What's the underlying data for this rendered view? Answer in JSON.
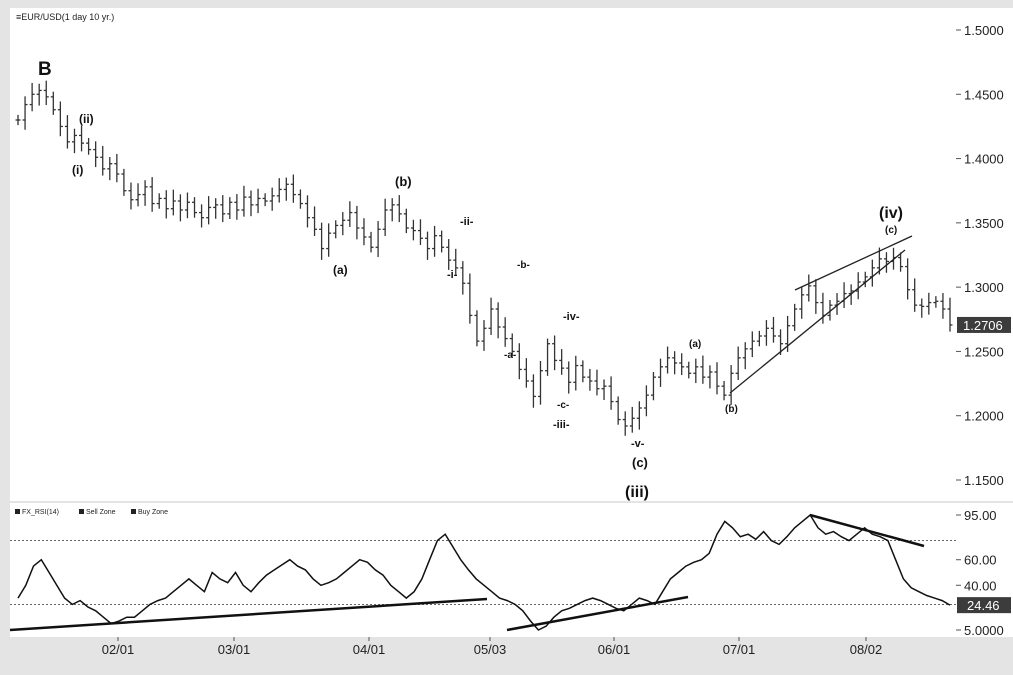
{
  "chart_data": [
    {
      "type": "ohlc",
      "title": "EUR/USD(1 day 10 yr.)",
      "y_ticks": [
        "1.5000",
        "1.4500",
        "1.4000",
        "1.3500",
        "1.3000",
        "1.2500",
        "1.2000",
        "1.1500"
      ],
      "ylim": [
        1.142,
        1.51
      ],
      "x_ticks": [
        "02/01",
        "03/01",
        "04/01",
        "05/03",
        "06/01",
        "07/01",
        "08/02"
      ],
      "last_price_label": "1.2706",
      "last_price": 1.2706,
      "colors": {
        "bars": "#333333",
        "last_badge_bg": "#3c3c3c",
        "last_badge_text": "#ffffff"
      },
      "wave_labels": {
        "B": "B",
        "i": "(i)",
        "ii": "(ii)",
        "a1": "(a)",
        "b1": "(b)",
        "minor_i": "-i-",
        "minor_ii": "-ii-",
        "minor_a": "-a-",
        "minor_b": "-b-",
        "minor_c": "-c-",
        "minor_iii": "-iii-",
        "minor_iv": "-iv-",
        "minor_v": "-v-",
        "c1": "(c)",
        "iii": "(iii)",
        "a2": "(a)",
        "b2": "(b)",
        "c2": "(c)",
        "iv": "(iv)"
      },
      "closes": [
        1.43,
        1.442,
        1.45,
        1.453,
        1.448,
        1.438,
        1.425,
        1.413,
        1.418,
        1.412,
        1.407,
        1.401,
        1.392,
        1.396,
        1.388,
        1.375,
        1.368,
        1.372,
        1.378,
        1.365,
        1.369,
        1.361,
        1.367,
        1.36,
        1.366,
        1.358,
        1.354,
        1.362,
        1.364,
        1.357,
        1.366,
        1.36,
        1.37,
        1.364,
        1.369,
        1.367,
        1.371,
        1.376,
        1.38,
        1.372,
        1.365,
        1.354,
        1.345,
        1.33,
        1.342,
        1.348,
        1.352,
        1.358,
        1.346,
        1.339,
        1.331,
        1.345,
        1.36,
        1.364,
        1.357,
        1.346,
        1.344,
        1.338,
        1.33,
        1.34,
        1.331,
        1.321,
        1.315,
        1.303,
        1.278,
        1.258,
        1.268,
        1.283,
        1.269,
        1.26,
        1.25,
        1.236,
        1.227,
        1.215,
        1.235,
        1.256,
        1.243,
        1.237,
        1.226,
        1.239,
        1.23,
        1.227,
        1.221,
        1.223,
        1.211,
        1.197,
        1.192,
        1.198,
        1.206,
        1.216,
        1.23,
        1.238,
        1.245,
        1.241,
        1.238,
        1.233,
        1.238,
        1.23,
        1.234,
        1.223,
        1.216,
        1.233,
        1.245,
        1.252,
        1.258,
        1.262,
        1.268,
        1.262,
        1.256,
        1.27,
        1.283,
        1.294,
        1.301,
        1.288,
        1.278,
        1.286,
        1.289,
        1.295,
        1.297,
        1.304,
        1.308,
        1.315,
        1.322,
        1.32,
        1.323,
        1.316,
        1.298,
        1.286,
        1.285,
        1.288,
        1.289,
        1.283,
        1.2706
      ]
    },
    {
      "type": "line",
      "legend": [
        "FX_RSI(14)",
        "Sell Zone",
        "Buy Zone"
      ],
      "y_ticks": [
        "95.00",
        "60.00",
        "40.00",
        "5.0000"
      ],
      "ylim": [
        0,
        100
      ],
      "sell_zone": 75,
      "buy_zone": 25,
      "last_value_label": "24.46",
      "values": [
        30,
        40,
        55,
        60,
        50,
        40,
        30,
        25,
        28,
        23,
        20,
        15,
        10,
        12,
        15,
        15,
        20,
        25,
        28,
        30,
        35,
        40,
        45,
        40,
        35,
        50,
        45,
        42,
        50,
        40,
        35,
        42,
        48,
        52,
        56,
        60,
        55,
        52,
        45,
        40,
        42,
        45,
        50,
        55,
        60,
        58,
        52,
        48,
        40,
        35,
        30,
        35,
        45,
        60,
        75,
        80,
        70,
        60,
        52,
        45,
        40,
        35,
        30,
        28,
        25,
        20,
        12,
        5,
        8,
        15,
        20,
        22,
        25,
        28,
        30,
        28,
        25,
        22,
        20,
        25,
        30,
        28,
        25,
        35,
        45,
        50,
        55,
        58,
        60,
        65,
        80,
        90,
        85,
        78,
        80,
        76,
        82,
        75,
        72,
        78,
        85,
        90,
        95,
        85,
        80,
        82,
        78,
        75,
        80,
        85,
        80,
        78,
        75,
        60,
        45,
        38,
        35,
        32,
        30,
        28,
        24.46
      ],
      "colors": {
        "line": "#111111",
        "last_badge_bg": "#3c3c3c",
        "last_badge_text": "#ffffff"
      }
    }
  ]
}
